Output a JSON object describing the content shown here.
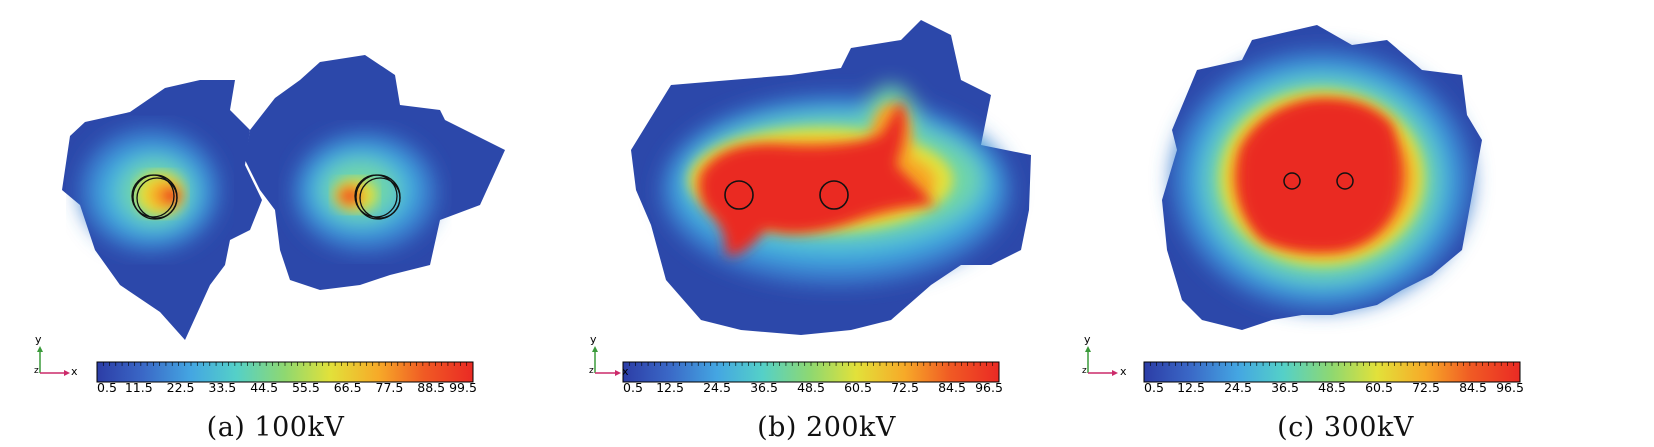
{
  "colors": {
    "colormap": [
      "#2c3da6",
      "#3a67c6",
      "#44a6e2",
      "#54d0c8",
      "#8fd870",
      "#e2e13a",
      "#f7a928",
      "#f05a24",
      "#ea2a24"
    ],
    "background": "#ffffff",
    "electrode": "#111111"
  },
  "panels": [
    {
      "caption": "(a) 100kV",
      "colorbar_ticks": [
        "0.5",
        "11.5",
        "22.5",
        "33.5",
        "44.5",
        "55.5",
        "66.5",
        "77.5",
        "88.5",
        "99.5"
      ],
      "axis": {
        "y": "y",
        "x": "x",
        "z": "z"
      }
    },
    {
      "caption": "(b) 200kV",
      "colorbar_ticks": [
        "0.5",
        "12.5",
        "24.5",
        "36.5",
        "48.5",
        "60.5",
        "72.5",
        "84.5",
        "96.5"
      ],
      "axis": {
        "y": "y",
        "x": "x",
        "z": "z"
      }
    },
    {
      "caption": "(c) 300kV",
      "colorbar_ticks": [
        "0.5",
        "12.5",
        "24.5",
        "36.5",
        "48.5",
        "60.5",
        "72.5",
        "84.5",
        "96.5"
      ],
      "axis": {
        "y": "y",
        "x": "x",
        "z": "z"
      }
    }
  ]
}
